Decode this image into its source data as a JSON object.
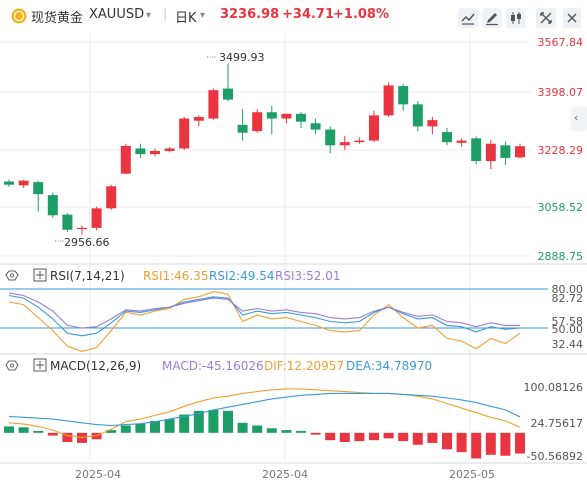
{
  "header": {
    "name": "现货黄金",
    "symbol": "XAUUSD",
    "period": "日K",
    "price": "3236.98",
    "change": "+34.71",
    "change_pct": "+1.08%",
    "up_color": "#e8353f",
    "down_color": "#1d9e66",
    "logo_color": "#f2b21c"
  },
  "toolbar": {
    "icons": [
      "indicator-icon",
      "draw-icon",
      "candle-settings-icon",
      "fullscreen-icon",
      "close-icon"
    ]
  },
  "price_axis": {
    "ticks": [
      "3567.84",
      "3398.07",
      "3228.29",
      "3058.52",
      "2888.75"
    ],
    "high_label": "3499.93",
    "low_label": "2956.66"
  },
  "rsi": {
    "title": "RSI(7,14,21)",
    "rsi1": "RSI1:46.35",
    "rsi2": "RSI2:49.54",
    "rsi3": "RSI3:52.01",
    "rsi1_color": "#f0a030",
    "rsi2_color": "#3a9ad9",
    "rsi3_color": "#9b7fd6",
    "ticks": [
      "80.00",
      "82.72",
      "57.58",
      "50.00",
      "32.44"
    ]
  },
  "macd": {
    "title": "MACD(12,26,9)",
    "macd": "MACD:-45.16026",
    "dif": "DIF:12.20957",
    "dea": "DEA:34.78970",
    "macd_color": "#9b7fd6",
    "dif_color": "#f0a030",
    "dea_color": "#3a9ad9",
    "ticks": [
      "100.08126",
      "24.75617",
      "-50.56892"
    ]
  },
  "time_axis": {
    "labels": [
      "2025-04",
      "2025-04",
      "2025-05"
    ]
  },
  "chart_data": [
    {
      "type": "candlestick",
      "title": "现货黄金 XAUUSD 日K",
      "y_range": [
        2860,
        3600
      ],
      "candles": [
        {
          "o": 3125,
          "h": 3132,
          "l": 3108,
          "c": 3115
        },
        {
          "o": 3113,
          "h": 3130,
          "l": 3105,
          "c": 3128
        },
        {
          "o": 3123,
          "h": 3128,
          "l": 3030,
          "c": 3085
        },
        {
          "o": 3082,
          "h": 3090,
          "l": 3010,
          "c": 3018
        },
        {
          "o": 3020,
          "h": 3025,
          "l": 2965,
          "c": 2972
        },
        {
          "o": 2975,
          "h": 2985,
          "l": 2956.66,
          "c": 2978
        },
        {
          "o": 2978,
          "h": 3045,
          "l": 2970,
          "c": 3040
        },
        {
          "o": 3040,
          "h": 3115,
          "l": 3035,
          "c": 3110
        },
        {
          "o": 3150,
          "h": 3245,
          "l": 3148,
          "c": 3238
        },
        {
          "o": 3230,
          "h": 3245,
          "l": 3200,
          "c": 3212
        },
        {
          "o": 3212,
          "h": 3230,
          "l": 3205,
          "c": 3222
        },
        {
          "o": 3222,
          "h": 3235,
          "l": 3218,
          "c": 3230
        },
        {
          "o": 3230,
          "h": 3330,
          "l": 3225,
          "c": 3325
        },
        {
          "o": 3318,
          "h": 3335,
          "l": 3300,
          "c": 3330
        },
        {
          "o": 3325,
          "h": 3420,
          "l": 3320,
          "c": 3415
        },
        {
          "o": 3420,
          "h": 3499.93,
          "l": 3380,
          "c": 3385
        },
        {
          "o": 3305,
          "h": 3355,
          "l": 3255,
          "c": 3280
        },
        {
          "o": 3285,
          "h": 3355,
          "l": 3280,
          "c": 3345
        },
        {
          "o": 3345,
          "h": 3365,
          "l": 3275,
          "c": 3325
        },
        {
          "o": 3325,
          "h": 3340,
          "l": 3310,
          "c": 3340
        },
        {
          "o": 3340,
          "h": 3345,
          "l": 3295,
          "c": 3315
        },
        {
          "o": 3310,
          "h": 3325,
          "l": 3275,
          "c": 3290
        },
        {
          "o": 3290,
          "h": 3300,
          "l": 3215,
          "c": 3240
        },
        {
          "o": 3240,
          "h": 3270,
          "l": 3225,
          "c": 3250
        },
        {
          "o": 3250,
          "h": 3265,
          "l": 3245,
          "c": 3255
        },
        {
          "o": 3255,
          "h": 3350,
          "l": 3250,
          "c": 3335
        },
        {
          "o": 3335,
          "h": 3440,
          "l": 3330,
          "c": 3430
        },
        {
          "o": 3428,
          "h": 3435,
          "l": 3350,
          "c": 3370
        },
        {
          "o": 3370,
          "h": 3380,
          "l": 3285,
          "c": 3300
        },
        {
          "o": 3300,
          "h": 3330,
          "l": 3275,
          "c": 3320
        },
        {
          "o": 3282,
          "h": 3295,
          "l": 3240,
          "c": 3250
        },
        {
          "o": 3248,
          "h": 3262,
          "l": 3235,
          "c": 3255
        },
        {
          "o": 3262,
          "h": 3268,
          "l": 3180,
          "c": 3190
        },
        {
          "o": 3190,
          "h": 3258,
          "l": 3165,
          "c": 3245
        },
        {
          "o": 3240,
          "h": 3252,
          "l": 3178,
          "c": 3200
        },
        {
          "o": 3202,
          "h": 3245,
          "l": 3198,
          "c": 3237
        }
      ]
    },
    {
      "type": "line",
      "title": "RSI(7,14,21)",
      "y_range": [
        25,
        92
      ],
      "series": [
        {
          "name": "RSI1",
          "values": [
            70,
            68,
            58,
            48,
            36,
            32,
            35,
            48,
            62,
            60,
            63,
            65,
            72,
            74,
            78,
            76,
            55,
            60,
            57,
            58,
            55,
            52,
            48,
            47,
            48,
            60,
            68,
            58,
            50,
            52,
            42,
            40,
            34,
            42,
            38,
            46
          ]
        },
        {
          "name": "RSI2",
          "values": [
            75,
            73,
            66,
            57,
            46,
            44,
            46,
            54,
            63,
            62,
            64,
            66,
            70,
            72,
            74,
            73,
            60,
            63,
            61,
            62,
            60,
            58,
            55,
            54,
            55,
            62,
            66,
            61,
            57,
            58,
            52,
            51,
            47,
            51,
            49,
            50
          ]
        },
        {
          "name": "RSI3",
          "values": [
            77,
            75,
            70,
            63,
            52,
            50,
            51,
            57,
            64,
            63,
            65,
            66,
            69,
            71,
            73,
            72,
            63,
            65,
            63,
            64,
            62,
            61,
            58,
            57,
            58,
            63,
            66,
            62,
            59,
            60,
            55,
            54,
            51,
            54,
            52,
            52
          ]
        }
      ]
    },
    {
      "type": "bar",
      "title": "MACD(12,26,9)",
      "y_range": [
        -58,
        112
      ],
      "series": [
        {
          "name": "MACD",
          "values": [
            14,
            12,
            4,
            -6,
            -20,
            -22,
            -14,
            6,
            16,
            20,
            26,
            30,
            40,
            48,
            50,
            48,
            22,
            16,
            10,
            6,
            4,
            -4,
            -16,
            -20,
            -18,
            -16,
            -12,
            -18,
            -26,
            -22,
            -36,
            -42,
            -56,
            -48,
            -50,
            -45.16026
          ]
        },
        {
          "name": "DIF",
          "values": [
            22,
            19,
            14,
            6,
            -6,
            -10,
            -6,
            8,
            24,
            30,
            38,
            46,
            58,
            68,
            76,
            80,
            86,
            90,
            94,
            96,
            96,
            94,
            92,
            90,
            88,
            86,
            86,
            84,
            80,
            74,
            64,
            54,
            44,
            34,
            26,
            12.20957
          ]
        },
        {
          "name": "DEA",
          "values": [
            36,
            34,
            32,
            30,
            26,
            22,
            18,
            16,
            18,
            20,
            24,
            30,
            36,
            42,
            50,
            56,
            62,
            68,
            74,
            78,
            82,
            84,
            86,
            86,
            86,
            86,
            86,
            84,
            82,
            80,
            76,
            72,
            66,
            58,
            50,
            34.7897
          ]
        }
      ]
    }
  ]
}
